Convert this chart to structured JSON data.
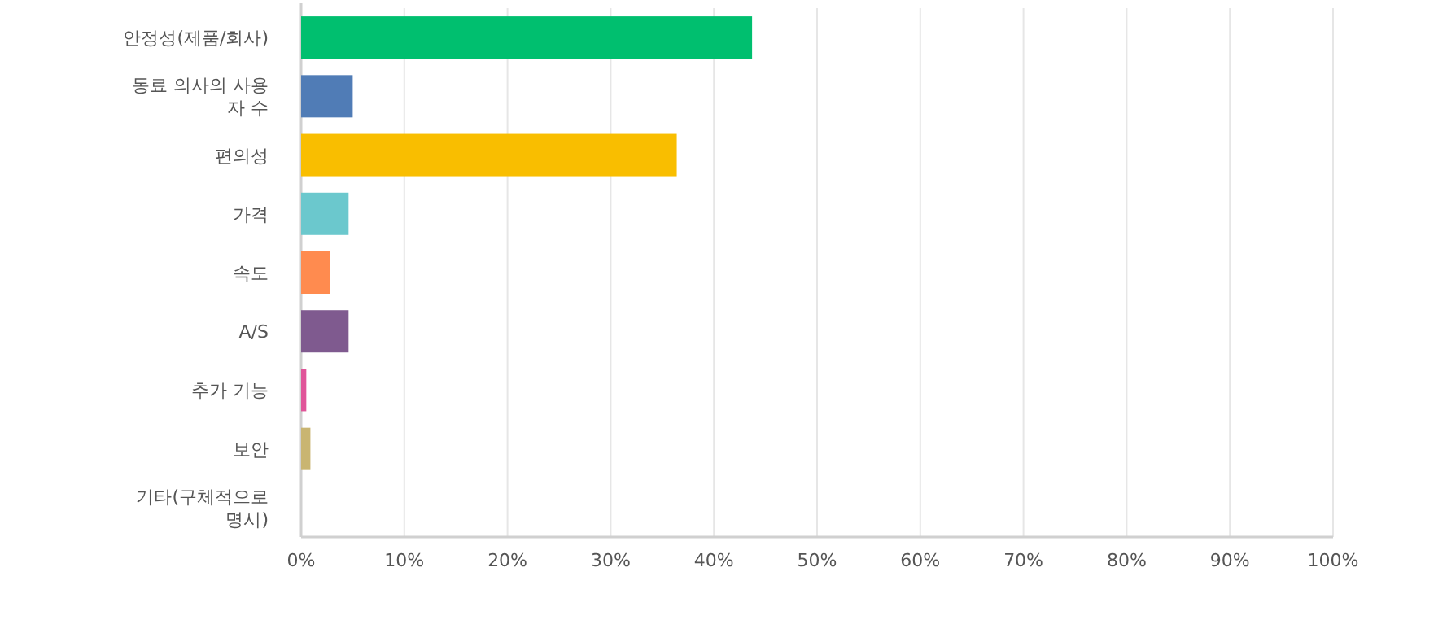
{
  "chart_data": {
    "type": "bar",
    "orientation": "horizontal",
    "categories": [
      "안정성(제품/회사)",
      "동료 의사의 사용자 수",
      "편의성",
      "가격",
      "속도",
      "A/S",
      "추가 기능",
      "보안",
      "기타(구체적으로 명시)"
    ],
    "values": [
      43.7,
      5.0,
      36.4,
      4.6,
      2.8,
      4.6,
      0.5,
      0.9,
      0
    ],
    "colors": [
      "#00bf6f",
      "#507cb6",
      "#f9be00",
      "#6bc8cd",
      "#ff8b4f",
      "#7f5a8f",
      "#e05599",
      "#c9b571",
      "#bdbdbd"
    ],
    "xlim": [
      0,
      100
    ],
    "xticks": [
      {
        "value": 0,
        "label": "0%"
      },
      {
        "value": 10,
        "label": "10%"
      },
      {
        "value": 20,
        "label": "20%"
      },
      {
        "value": 30,
        "label": "30%"
      },
      {
        "value": 40,
        "label": "40%"
      },
      {
        "value": 50,
        "label": "50%"
      },
      {
        "value": 60,
        "label": "60%"
      },
      {
        "value": 70,
        "label": "70%"
      },
      {
        "value": 80,
        "label": "80%"
      },
      {
        "value": 90,
        "label": "90%"
      },
      {
        "value": 100,
        "label": "100%"
      }
    ],
    "grid": "x"
  }
}
